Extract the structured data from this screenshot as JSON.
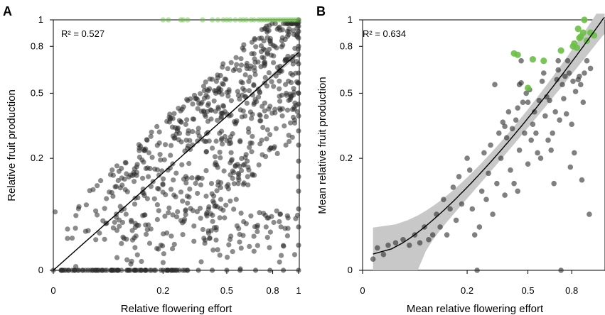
{
  "colors": {
    "grey_point": "#2b2b2b",
    "green_point": "#6abf45",
    "fit_line": "#000000",
    "ci_band": "#c8c8c8"
  },
  "chart_data": [
    {
      "type": "scatter",
      "panel_label": "A",
      "title": "",
      "xlabel": "Relative flowering effort",
      "ylabel": "Relative fruit production",
      "annotation": "R² = 0.527",
      "x_scale": "sqrt",
      "y_scale": "sqrt",
      "xlim": [
        0,
        1
      ],
      "ylim": [
        0,
        1
      ],
      "xticks": [
        0,
        0.2,
        0.5,
        0.8,
        1
      ],
      "yticks": [
        0,
        0.2,
        0.5,
        0.8,
        1
      ],
      "xtick_labels": [
        "0",
        "0.2",
        "0.5",
        "0.8",
        "1"
      ],
      "ytick_labels": [
        "0",
        "0.2",
        "0.5",
        "0.8",
        "1"
      ],
      "grid": false,
      "fit": {
        "type": "line",
        "x": [
          0,
          1
        ],
        "y": [
          0,
          0.757
        ],
        "ci_halfwidth": [
          0,
          0.025
        ]
      },
      "green_x": [
        0.2,
        0.22,
        0.27,
        0.28,
        0.3,
        0.37,
        0.42,
        0.45,
        0.48,
        0.5,
        0.52,
        0.55,
        0.58,
        0.6,
        0.62,
        0.65,
        0.67,
        0.7,
        0.72,
        0.74,
        0.76,
        0.78,
        0.8,
        0.82,
        0.84,
        0.86,
        0.88,
        0.9,
        0.92,
        0.94,
        0.96,
        0.98,
        1.0
      ],
      "green_y": 1,
      "edge_x": 1,
      "edge_y": [
        0.0,
        0.01,
        0.03,
        0.06,
        0.1,
        0.14,
        0.19,
        0.25,
        0.31,
        0.38,
        0.44,
        0.5,
        0.56,
        0.62,
        0.68,
        0.74,
        0.8,
        0.86,
        0.91,
        0.95,
        0.98,
        1.0
      ],
      "zero_x": [
        0.0,
        0.001,
        0.002,
        0.004,
        0.006,
        0.01,
        0.014,
        0.02,
        0.03,
        0.04,
        0.055,
        0.07,
        0.09,
        0.11,
        0.14,
        0.17,
        0.2,
        0.25,
        0.3,
        0.35,
        0.42,
        0.5,
        0.58,
        0.68,
        0.78,
        0.88
      ],
      "zero_y": 0,
      "grey_count": 820,
      "seed": 7
    },
    {
      "type": "scatter",
      "panel_label": "B",
      "title": "",
      "xlabel": "Mean relative flowering effort",
      "ylabel": "Mean relative fruit production",
      "annotation": "R² = 0.634",
      "x_scale": "sqrt",
      "y_scale": "sqrt",
      "xlim": [
        0,
        1
      ],
      "ylim": [
        0,
        1
      ],
      "xticks": [
        0,
        0.2,
        0.5,
        0.8
      ],
      "yticks": [
        0,
        0.2,
        0.5,
        0.8,
        1
      ],
      "xtick_labels": [
        "0",
        "0.2",
        "0.5",
        "0.8"
      ],
      "ytick_labels": [
        "0",
        "0.2",
        "0.5",
        "0.8",
        "1"
      ],
      "grid": false,
      "fit": {
        "type": "curve"
      },
      "grey_points": [
        [
          0.002,
          0.002
        ],
        [
          0.004,
          0.008
        ],
        [
          0.008,
          0.004
        ],
        [
          0.012,
          0.01
        ],
        [
          0.02,
          0.012
        ],
        [
          0.03,
          0.015
        ],
        [
          0.04,
          0.01
        ],
        [
          0.05,
          0.02
        ],
        [
          0.06,
          0.012
        ],
        [
          0.07,
          0.03
        ],
        [
          0.08,
          0.015
        ],
        [
          0.09,
          0.02
        ],
        [
          0.1,
          0.05
        ],
        [
          0.11,
          0.03
        ],
        [
          0.12,
          0.08
        ],
        [
          0.13,
          0.02
        ],
        [
          0.14,
          0.06
        ],
        [
          0.15,
          0.11
        ],
        [
          0.16,
          0.04
        ],
        [
          0.17,
          0.14
        ],
        [
          0.18,
          0.07
        ],
        [
          0.2,
          0.2
        ],
        [
          0.21,
          0.16
        ],
        [
          0.22,
          0.06
        ],
        [
          0.23,
          0.02
        ],
        [
          0.24,
          0.0
        ],
        [
          0.25,
          0.03
        ],
        [
          0.26,
          0.1
        ],
        [
          0.27,
          0.22
        ],
        [
          0.28,
          0.08
        ],
        [
          0.29,
          0.15
        ],
        [
          0.3,
          0.25
        ],
        [
          0.31,
          0.05
        ],
        [
          0.32,
          0.55
        ],
        [
          0.33,
          0.12
        ],
        [
          0.34,
          0.3
        ],
        [
          0.35,
          0.2
        ],
        [
          0.36,
          0.35
        ],
        [
          0.37,
          0.09
        ],
        [
          0.37,
          0.33
        ],
        [
          0.38,
          0.28
        ],
        [
          0.39,
          0.4
        ],
        [
          0.4,
          0.16
        ],
        [
          0.41,
          0.32
        ],
        [
          0.42,
          0.12
        ],
        [
          0.43,
          0.36
        ],
        [
          0.44,
          0.1
        ],
        [
          0.44,
          0.42
        ],
        [
          0.45,
          0.23
        ],
        [
          0.45,
          0.55
        ],
        [
          0.46,
          0.56
        ],
        [
          0.46,
          0.7
        ],
        [
          0.47,
          0.45
        ],
        [
          0.48,
          0.3
        ],
        [
          0.49,
          0.5
        ],
        [
          0.5,
          0.18
        ],
        [
          0.5,
          0.45
        ],
        [
          0.51,
          0.52
        ],
        [
          0.52,
          0.27
        ],
        [
          0.53,
          0.34
        ],
        [
          0.54,
          0.4
        ],
        [
          0.55,
          0.3
        ],
        [
          0.56,
          0.22
        ],
        [
          0.57,
          0.46
        ],
        [
          0.58,
          0.2
        ],
        [
          0.59,
          0.57
        ],
        [
          0.6,
          0.62
        ],
        [
          0.61,
          0.38
        ],
        [
          0.62,
          0.48
        ],
        [
          0.63,
          0.27
        ],
        [
          0.64,
          0.46
        ],
        [
          0.65,
          0.23
        ],
        [
          0.66,
          0.3
        ],
        [
          0.67,
          0.12
        ],
        [
          0.68,
          0.4
        ],
        [
          0.69,
          0.58
        ],
        [
          0.7,
          0.64
        ],
        [
          0.7,
          0.7
        ],
        [
          0.71,
          0.36
        ],
        [
          0.72,
          0.0
        ],
        [
          0.73,
          0.55
        ],
        [
          0.74,
          0.47
        ],
        [
          0.75,
          0.6
        ],
        [
          0.76,
          0.39
        ],
        [
          0.77,
          0.7
        ],
        [
          0.78,
          0.62
        ],
        [
          0.79,
          0.17
        ],
        [
          0.8,
          0.34
        ],
        [
          0.81,
          0.57
        ],
        [
          0.82,
          0.22
        ],
        [
          0.83,
          0.51
        ],
        [
          0.85,
          0.58
        ],
        [
          0.86,
          0.6
        ],
        [
          0.87,
          0.55
        ],
        [
          0.88,
          0.13
        ],
        [
          0.89,
          0.45
        ],
        [
          0.9,
          0.62
        ],
        [
          0.92,
          0.7
        ],
        [
          0.94,
          0.05
        ],
        [
          0.95,
          0.65
        ]
      ],
      "green_points": [
        [
          0.42,
          0.75
        ],
        [
          0.44,
          0.74
        ],
        [
          0.5,
          0.53
        ],
        [
          0.53,
          0.71
        ],
        [
          0.6,
          0.7
        ],
        [
          0.72,
          0.77
        ],
        [
          0.81,
          0.8
        ],
        [
          0.82,
          0.82
        ],
        [
          0.84,
          0.79
        ],
        [
          0.85,
          0.93
        ],
        [
          0.86,
          0.86
        ],
        [
          0.87,
          0.87
        ],
        [
          0.89,
          0.9
        ],
        [
          0.9,
          1.0
        ],
        [
          0.92,
          0.84
        ],
        [
          0.95,
          0.9
        ],
        [
          0.98,
          0.88
        ]
      ]
    }
  ]
}
